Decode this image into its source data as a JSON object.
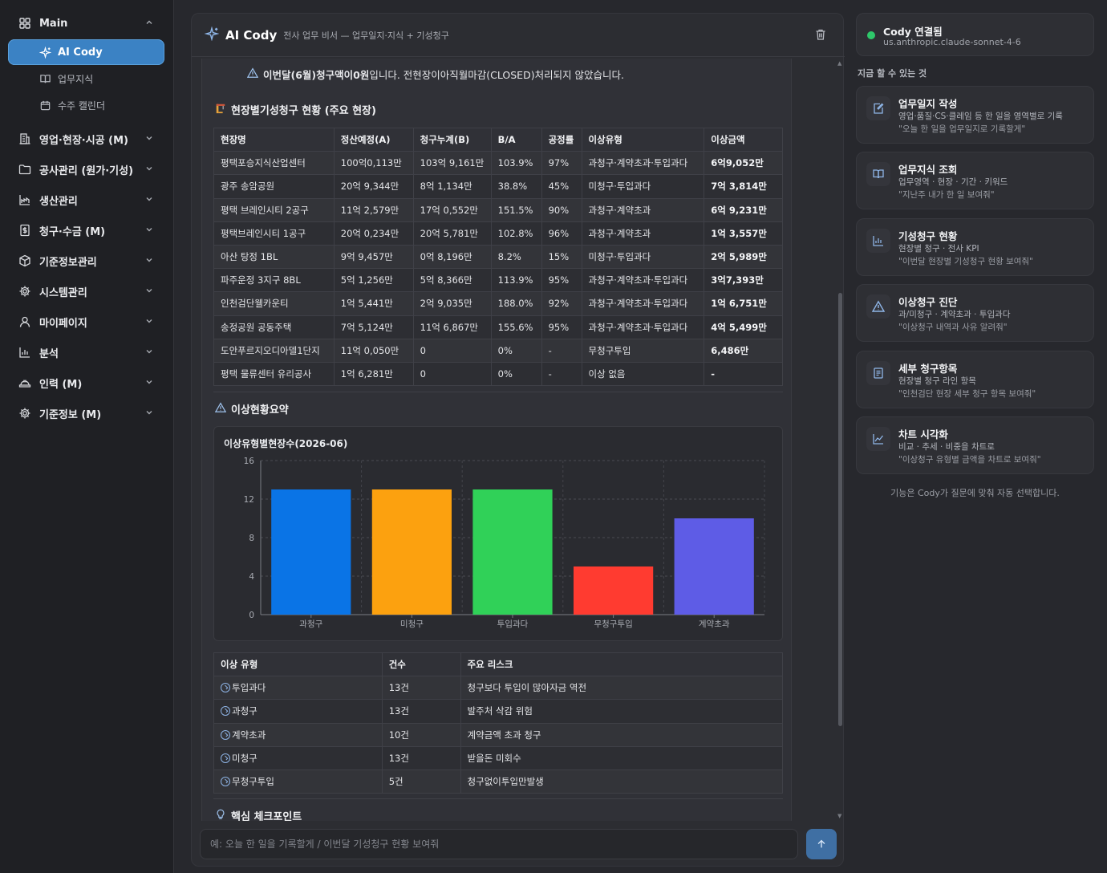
{
  "sidebar": {
    "main_label": "Main",
    "items": [
      {
        "label": "AI Cody"
      },
      {
        "label": "업무지식"
      },
      {
        "label": "수주 캘린더"
      }
    ],
    "sections": [
      {
        "label": "영업·현장·시공 (M)"
      },
      {
        "label": "공사관리 (원가·기성)"
      },
      {
        "label": "생산관리"
      },
      {
        "label": "청구·수금 (M)"
      },
      {
        "label": "기준정보관리"
      },
      {
        "label": "시스템관리"
      },
      {
        "label": "마이페이지"
      },
      {
        "label": "분석"
      },
      {
        "label": "인력 (M)"
      },
      {
        "label": "기준정보 (M)"
      }
    ]
  },
  "chat": {
    "title": "AI Cody",
    "subtitle": "전사 업무 비서 — 업무일지·지식 + 기성청구",
    "warning_bold": "이번달(6월)청구액이0원",
    "warning_rest": "입니다. 전현장이아직월마감(CLOSED)처리되지 않았습니다.",
    "section1_title": "현장별기성청구 현황 (주요 현장)",
    "table1": {
      "headers": [
        "현장명",
        "정산예정(A)",
        "청구누계(B)",
        "B/A",
        "공정률",
        "이상유형",
        "이상금액"
      ],
      "rows": [
        [
          "평택포승지식산업센터",
          "100억0,113만",
          "103억 9,161만",
          "103.9%",
          "97%",
          "과청구·계약초과·투입과다",
          "6억9,052만"
        ],
        [
          "광주 송암공원",
          "20억 9,344만",
          "8억 1,134만",
          "38.8%",
          "45%",
          "미청구·투입과다",
          "7억 3,814만"
        ],
        [
          "평택 브레인시티 2공구",
          "11억 2,579만",
          "17억 0,552만",
          "151.5%",
          "90%",
          "과청구·계약초과",
          "6억 9,231만"
        ],
        [
          "평택브레인시티 1공구",
          "20억 0,234만",
          "20억 5,781만",
          "102.8%",
          "96%",
          "과청구·계약초과",
          "1억 3,557만"
        ],
        [
          "아산 탕정 1BL",
          "9억 9,457만",
          "0억 8,196만",
          "8.2%",
          "15%",
          "미청구·투입과다",
          "2억 5,989만"
        ],
        [
          "파주운정 3지구 8BL",
          "5억 1,256만",
          "5억 8,366만",
          "113.9%",
          "95%",
          "과청구·계약초과·투입과다",
          "3억7,393만"
        ],
        [
          "인천검단웰카운티",
          "1억 5,441만",
          "2억 9,035만",
          "188.0%",
          "92%",
          "과청구·계약초과·투입과다",
          "1억 6,751만"
        ],
        [
          "송정공원 공동주택",
          "7억 5,124만",
          "11억 6,867만",
          "155.6%",
          "95%",
          "과청구·계약초과·투입과다",
          "4억 5,499만"
        ],
        [
          "도안푸르지오디아델1단지",
          "11억 0,050만",
          "0",
          "0%",
          "-",
          "무청구투입",
          "6,486만"
        ],
        [
          "평택 물류센터 유리공사",
          "1억 6,281만",
          "0",
          "0%",
          "-",
          "이상 없음",
          "-"
        ]
      ]
    },
    "section2_title": "이상현황요약",
    "chart_data": {
      "type": "bar",
      "title": "이상유형별현장수(2026-06)",
      "categories": [
        "과청구",
        "미청구",
        "투입과다",
        "무청구투입",
        "계약초과"
      ],
      "values": [
        13,
        13,
        13,
        5,
        10
      ],
      "colors": [
        "#0a74e6",
        "#fca10f",
        "#30d158",
        "#ff3b30",
        "#5e5ce6"
      ],
      "ylim": [
        0,
        16
      ],
      "yticks": [
        0,
        4,
        8,
        12,
        16
      ],
      "grid": true,
      "xlabel": "",
      "ylabel": ""
    },
    "table2": {
      "headers": [
        "이상 유형",
        "건수",
        "주요 리스크"
      ],
      "rows": [
        [
          "투입과다",
          "13건",
          "청구보다 투입이 많아자금 역전"
        ],
        [
          "과청구",
          "13건",
          "발주처 삭감 위험"
        ],
        [
          "계약초과",
          "10건",
          "계약금액 초과 청구"
        ],
        [
          "미청구",
          "13건",
          "받을돈 미회수"
        ],
        [
          "무청구투입",
          "5건",
          "청구없이투입만발생"
        ]
      ]
    },
    "section3_title": "핵심 체크포인트",
    "input_placeholder": "예: 오늘 한 일을 기록할게 / 이번달 기성청구 현황 보여줘"
  },
  "right_panel": {
    "status_title": "Cody 연결됨",
    "status_model": "us.anthropic.claude-sonnet-4-6",
    "status_color": "#2ec76a",
    "section_label": "지금 할 수 있는 것",
    "capabilities": [
      {
        "title": "업무일지 작성",
        "desc": "영업·품질·CS·클레임 등 한 일을 영역별로 기록",
        "example": "\"오늘 한 일을 업무일지로 기록할게\""
      },
      {
        "title": "업무지식 조회",
        "desc": "업무영역 · 현장 · 기간 · 키워드",
        "example": "\"지난주 내가 한 일 보여줘\""
      },
      {
        "title": "기성청구 현황",
        "desc": "현장별 청구 · 전사 KPI",
        "example": "\"이번달 현장별 기성청구 현황 보여줘\""
      },
      {
        "title": "이상청구 진단",
        "desc": "과/미청구 · 계약초과 · 투입과다",
        "example": "\"이상청구 내역과 사유 알려줘\""
      },
      {
        "title": "세부 청구항목",
        "desc": "현장별 청구 라인 항목",
        "example": "\"인천검단 현장 세부 청구 항목 보여줘\""
      },
      {
        "title": "차트 시각화",
        "desc": "비교 · 추세 · 비중을 차트로",
        "example": "\"이상청구 유형별 금액을 차트로 보여줘\""
      }
    ],
    "footer": "기능은 Cody가 질문에 맞춰 자동 선택합니다."
  }
}
